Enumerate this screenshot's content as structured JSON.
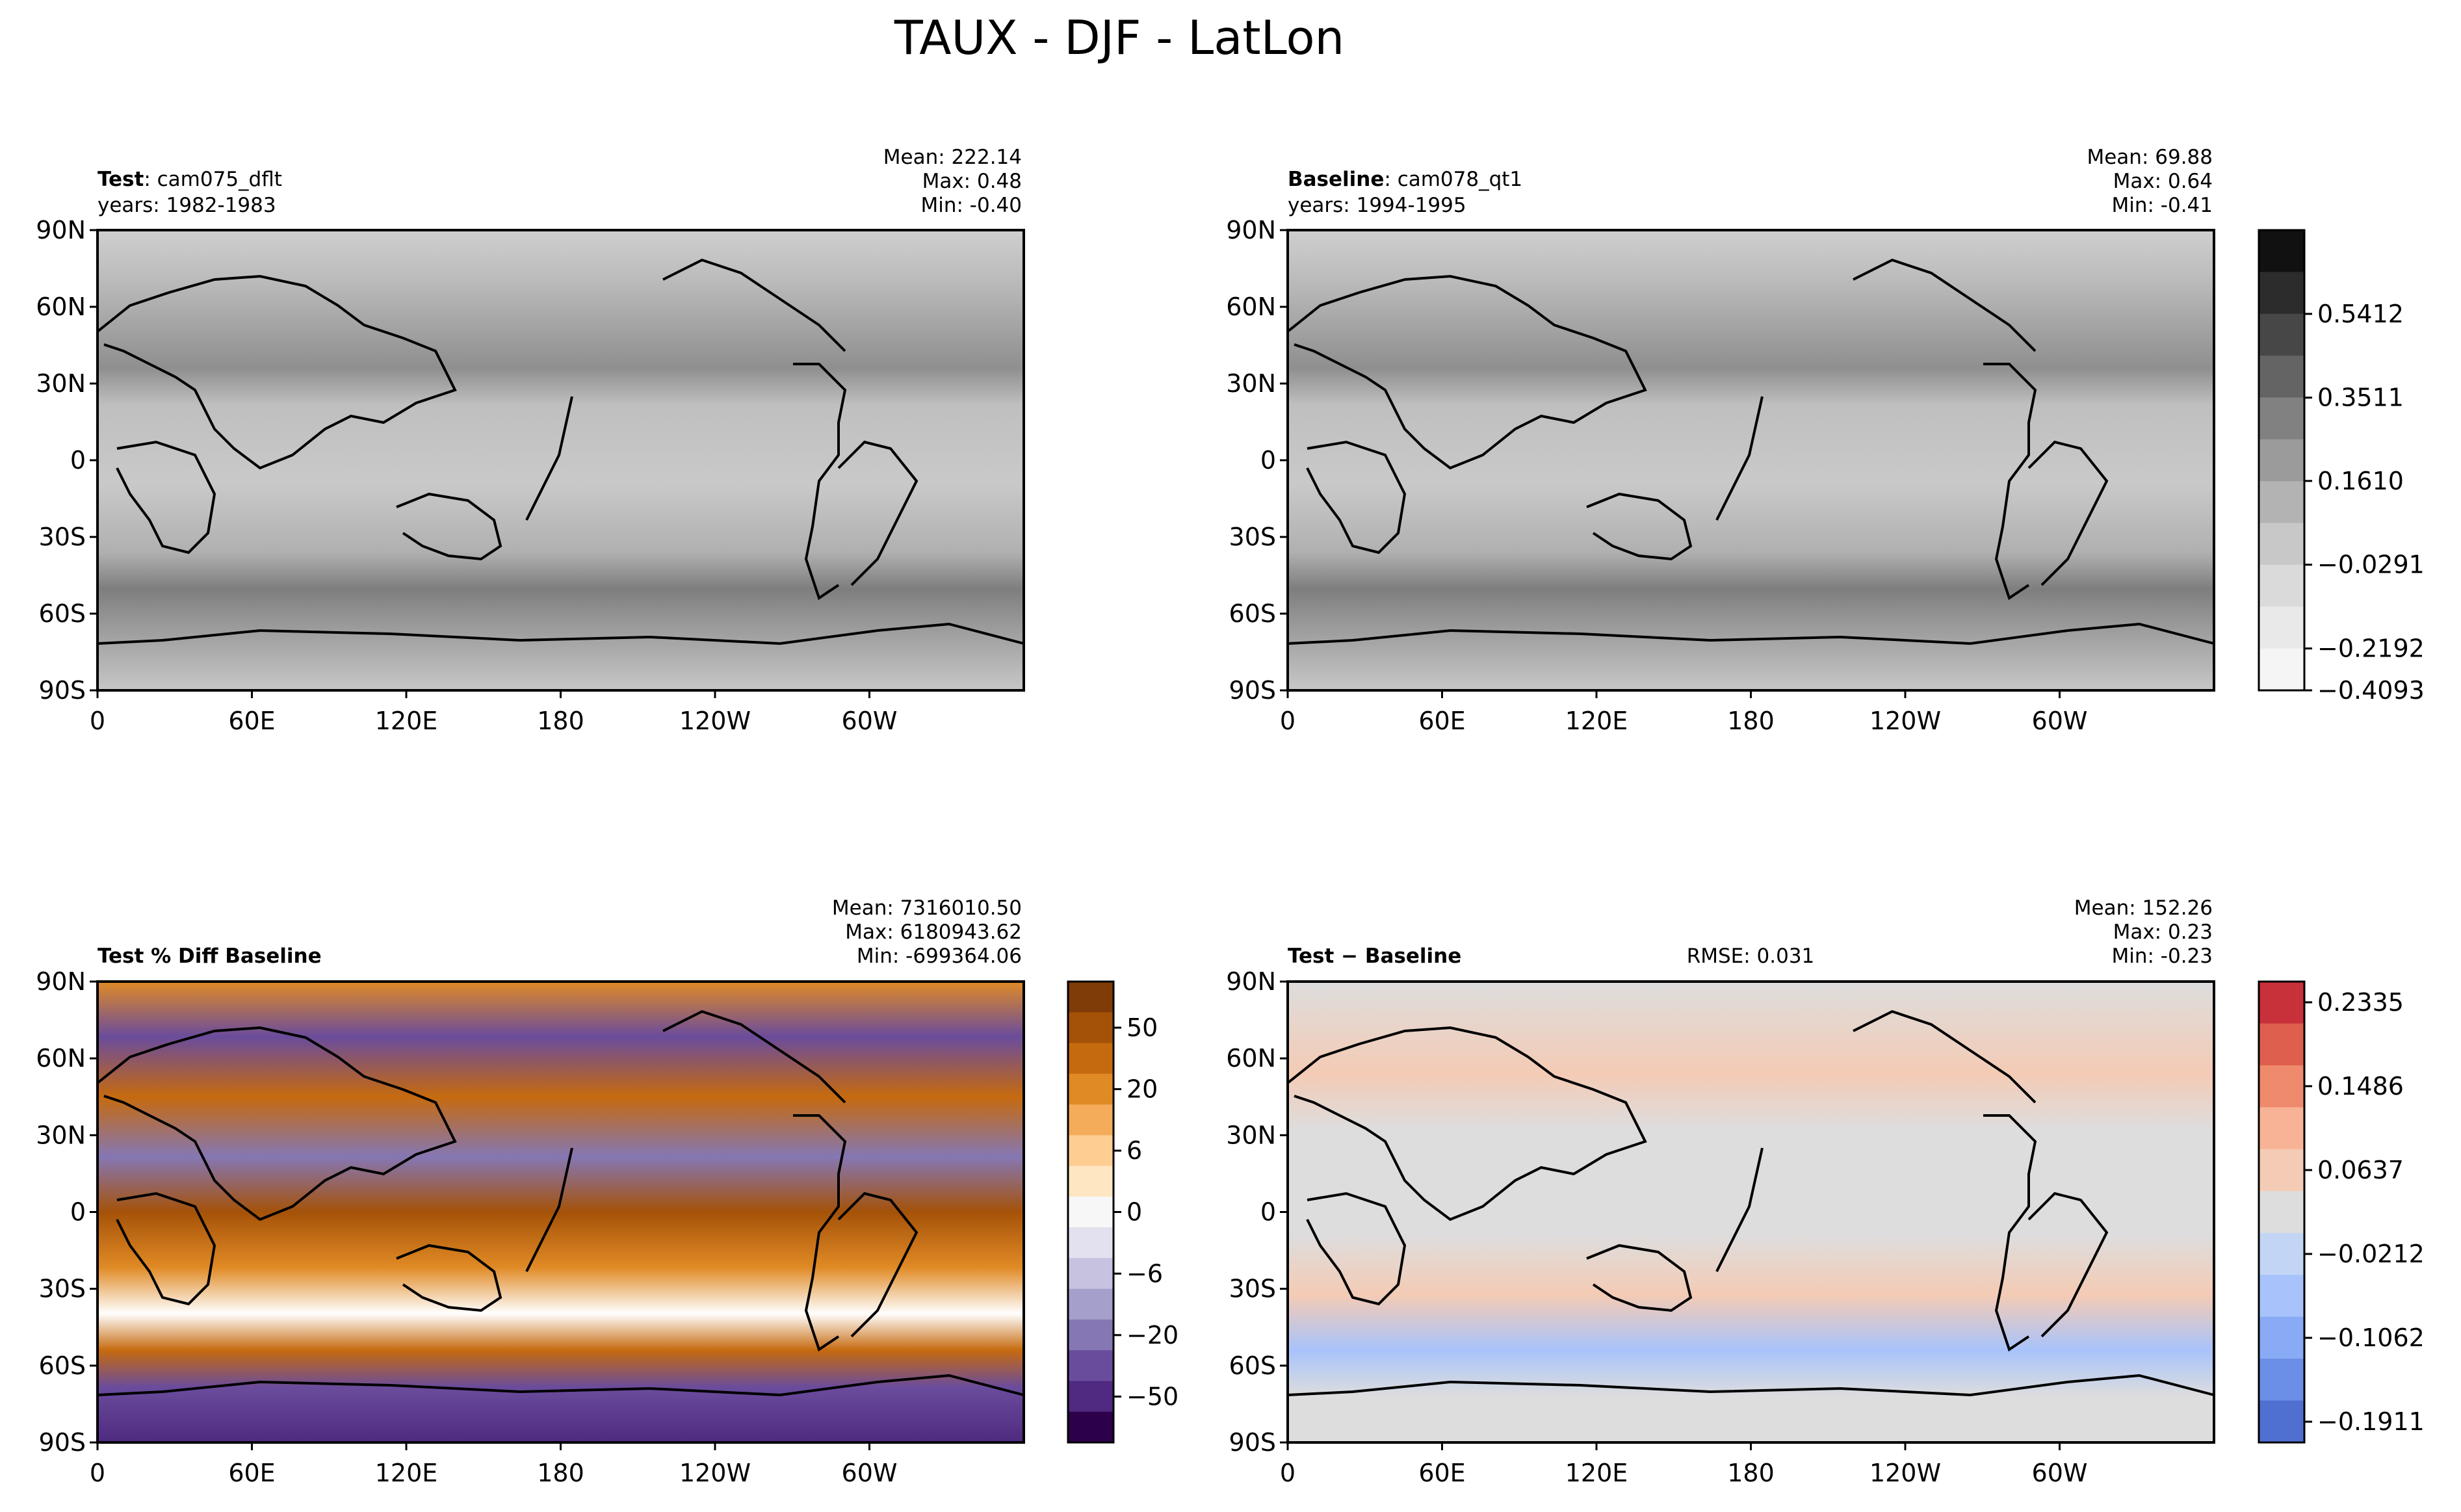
{
  "figure": {
    "title": "TAUX - DJF - LatLon"
  },
  "axes": {
    "lat_ticks": [
      "90N",
      "60N",
      "30N",
      "0",
      "30S",
      "60S",
      "90S"
    ],
    "lon_ticks": [
      "0",
      "60E",
      "120E",
      "180",
      "120W",
      "60W"
    ]
  },
  "panels": [
    {
      "id": "test",
      "label_bold": "Test",
      "label_sep": ": ",
      "label_rest": "cam075_dflt",
      "years": "years: 1982-1983",
      "stats": {
        "mean": "Mean: 222.14",
        "max": "Max:  0.48",
        "min": "Min: -0.40"
      },
      "colormap": "greys"
    },
    {
      "id": "baseline",
      "label_bold": "Baseline",
      "label_sep": ": ",
      "label_rest": "cam078_qt1",
      "years": "years: 1994-1995",
      "stats": {
        "mean": "Mean: 69.88",
        "max": "Max:  0.64",
        "min": "Min: -0.41"
      },
      "colormap": "greys"
    },
    {
      "id": "pctdiff",
      "label_bold": "Test % Diff Baseline",
      "stats": {
        "mean": "Mean: 7316010.50",
        "max": "Max: 6180943.62",
        "min": "Min: -699364.06"
      },
      "colormap": "purple-orange"
    },
    {
      "id": "diff",
      "label_bold": "Test − Baseline",
      "rmse": "RMSE: 0.031",
      "stats": {
        "mean": "Mean: 152.26",
        "max": "Max:  0.23",
        "min": "Min: -0.23"
      },
      "colormap": "blue-red"
    }
  ],
  "colorbars": {
    "top": {
      "ticks": [
        "0.5412",
        "0.3511",
        "0.1610",
        "−0.0291",
        "−0.2192",
        "−0.4093"
      ],
      "colors": [
        "#111111",
        "#2c2c2c",
        "#474747",
        "#646464",
        "#818181",
        "#9b9b9b",
        "#b3b3b3",
        "#c8c8c8",
        "#dadada",
        "#e9e9e9",
        "#f5f5f5"
      ]
    },
    "pctdiff": {
      "ticks": [
        "50",
        "20",
        "6",
        "0",
        "−6",
        "−20",
        "−50"
      ],
      "colors": [
        "#7f3b08",
        "#a55209",
        "#c66a0f",
        "#e08a25",
        "#f4ab5a",
        "#fdcd91",
        "#fee6c2",
        "#f7f7f7",
        "#e3e1ef",
        "#c6c2e0",
        "#a59fcb",
        "#8577b4",
        "#6a4c9c",
        "#4f2a80",
        "#2d004b"
      ]
    },
    "diff": {
      "ticks": [
        "0.2335",
        "0.1486",
        "0.0637",
        "−0.0212",
        "−0.1062",
        "−0.1911"
      ],
      "colors": [
        "#c8303a",
        "#de5f4d",
        "#f08a6c",
        "#f8b396",
        "#f4cbb5",
        "#dddddd",
        "#c2d5f5",
        "#a8c3fb",
        "#89aaf5",
        "#6b8ee6",
        "#4f6fd1"
      ]
    }
  }
}
